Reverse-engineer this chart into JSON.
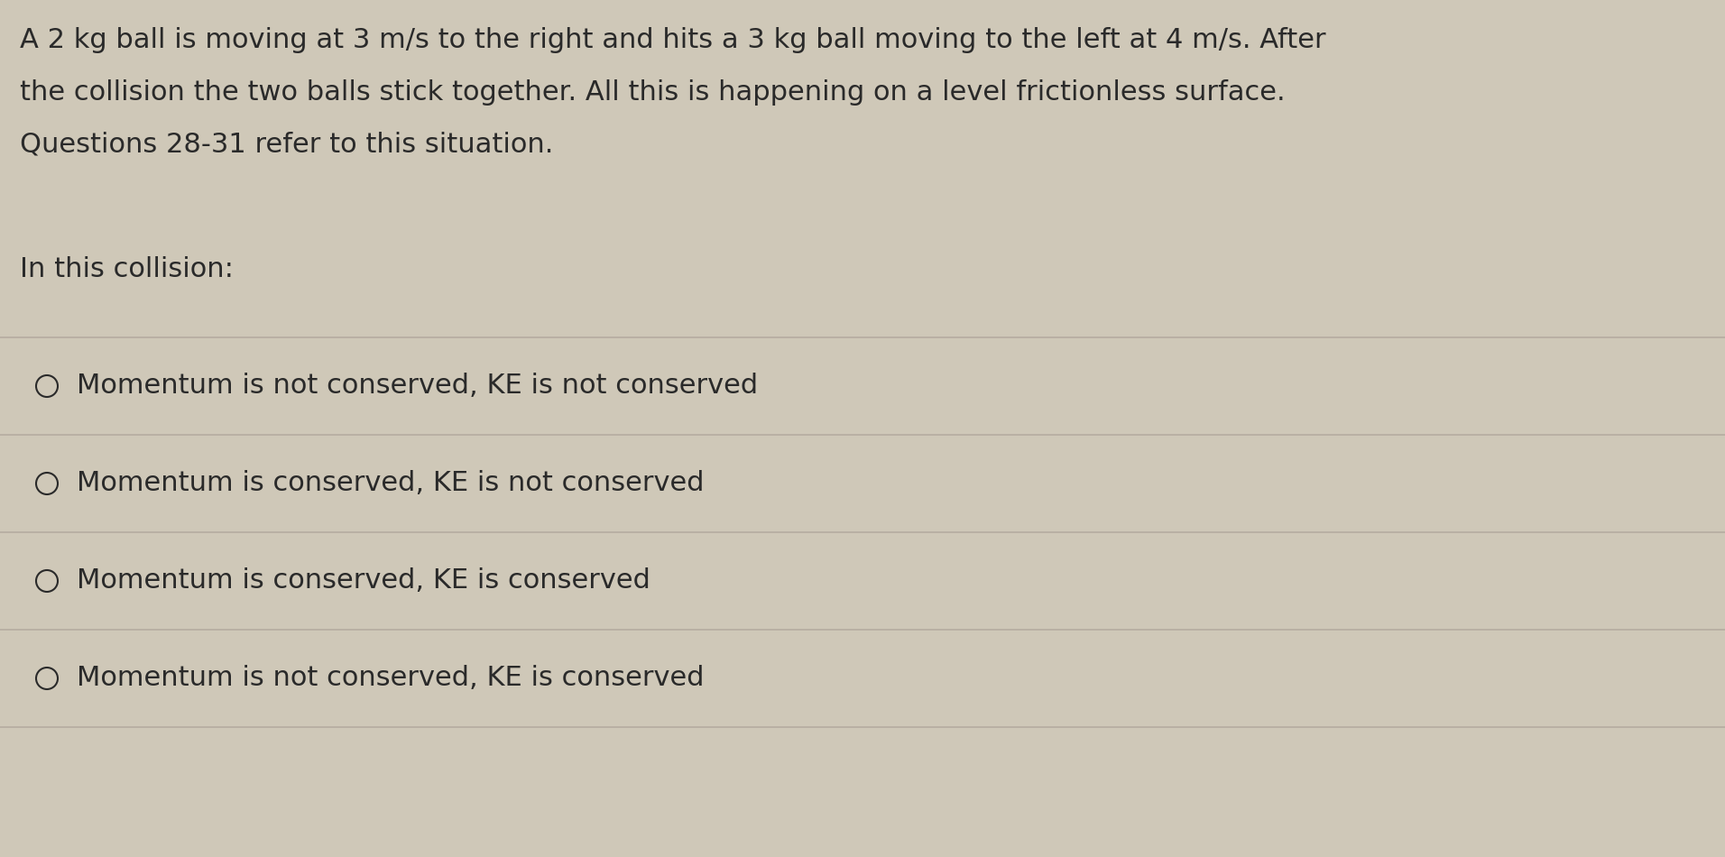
{
  "background_color": "#cfc8b8",
  "text_color": "#2a2a2a",
  "paragraph_lines": [
    "A 2 kg ball is moving at 3 m/s to the right and hits a 3 kg ball moving to the left at 4 m/s. After",
    "the collision the two balls stick together. All this is happening on a level frictionless surface.",
    "Questions 28-31 refer to this situation."
  ],
  "question_text": "In this collision:",
  "options": [
    "Momentum is not conserved, KE is not conserved",
    "Momentum is conserved, KE is not conserved",
    "Momentum is conserved, KE is conserved",
    "Momentum is not conserved, KE is conserved"
  ],
  "paragraph_fontsize": 22,
  "question_fontsize": 22,
  "option_fontsize": 22,
  "line_color": "#b5aca0",
  "line_width": 1.2,
  "fig_width": 19.12,
  "fig_height": 9.5,
  "dpi": 100
}
